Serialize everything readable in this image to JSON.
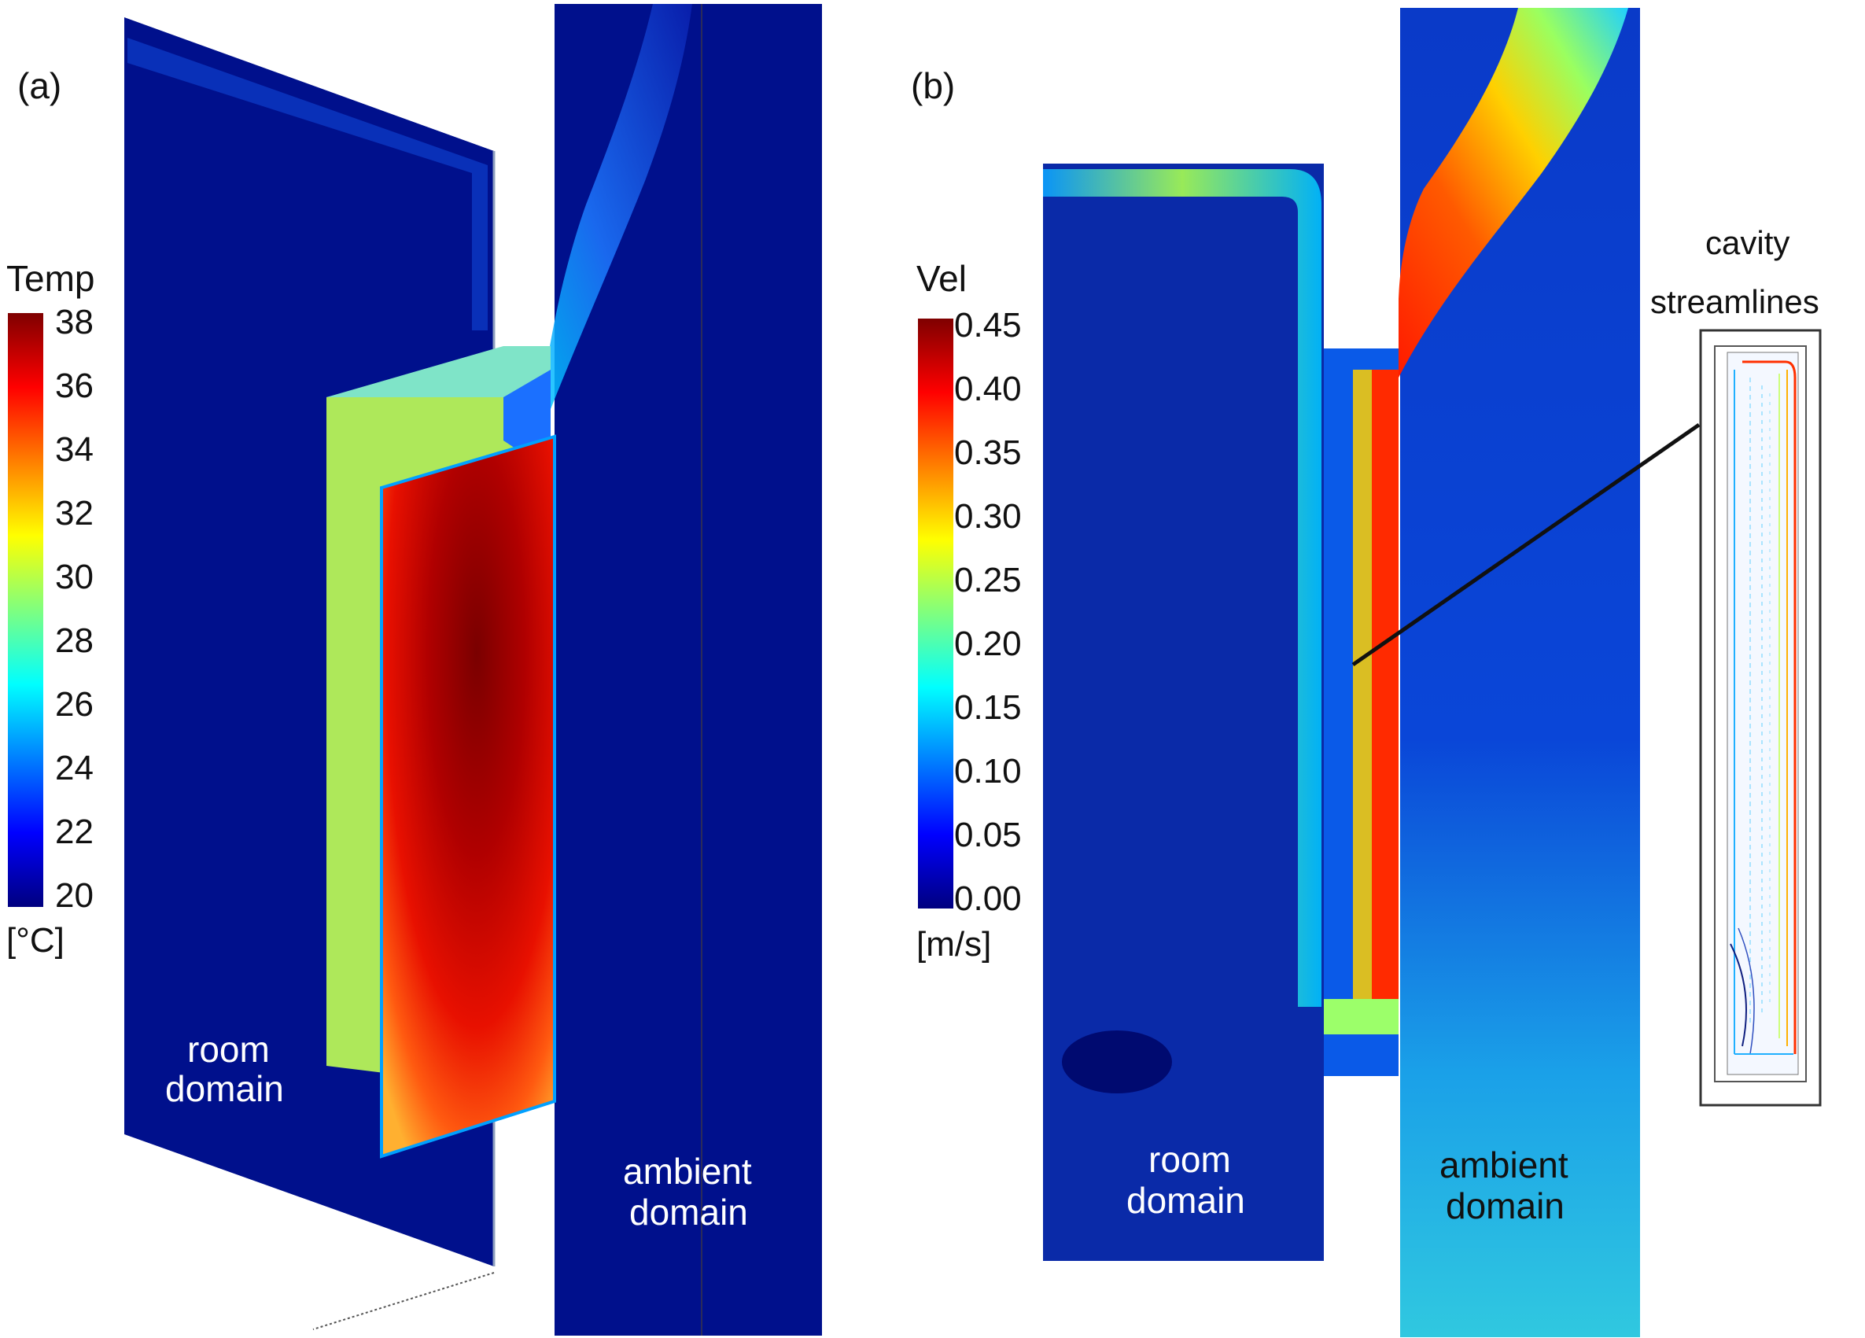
{
  "panel_a": {
    "label": "(a)",
    "colorbar": {
      "title": "Temp",
      "unit": "[°C]",
      "ticks": [
        "38",
        "36",
        "34",
        "32",
        "30",
        "28",
        "26",
        "24",
        "22",
        "20"
      ]
    },
    "room_label": [
      "room",
      "domain"
    ],
    "ambient_label": [
      "ambient",
      "domain"
    ]
  },
  "panel_b": {
    "label": "(b)",
    "colorbar": {
      "title": "Vel",
      "unit": "[m/s]",
      "ticks": [
        "0.45",
        "0.40",
        "0.35",
        "0.30",
        "0.25",
        "0.20",
        "0.15",
        "0.10",
        "0.05",
        "0.00"
      ]
    },
    "room_label": [
      "room",
      "domain"
    ],
    "ambient_label": [
      "ambient",
      "domain"
    ],
    "inset_label": [
      "cavity",
      "streamlines"
    ]
  },
  "colormap": [
    "#00007f",
    "#0000ff",
    "#007fff",
    "#00ffff",
    "#7fff7f",
    "#ffff00",
    "#ff7f00",
    "#ff0000",
    "#7f0000"
  ]
}
